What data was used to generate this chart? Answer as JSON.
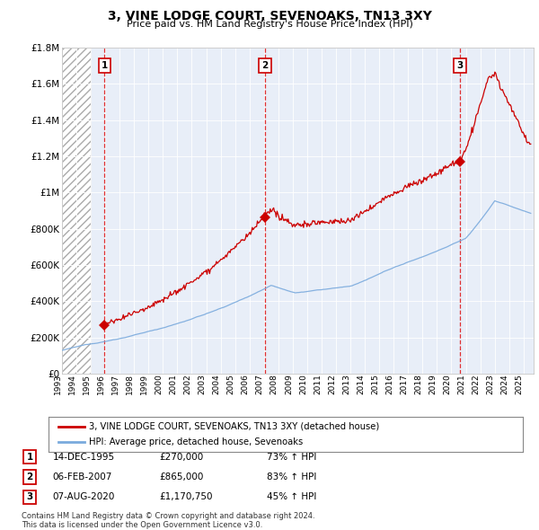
{
  "title": "3, VINE LODGE COURT, SEVENOAKS, TN13 3XY",
  "subtitle": "Price paid vs. HM Land Registry's House Price Index (HPI)",
  "ylim": [
    0,
    1800000
  ],
  "yticks": [
    0,
    200000,
    400000,
    600000,
    800000,
    1000000,
    1200000,
    1400000,
    1600000,
    1800000
  ],
  "ytick_labels": [
    "£0",
    "£200K",
    "£400K",
    "£600K",
    "£800K",
    "£1M",
    "£1.2M",
    "£1.4M",
    "£1.6M",
    "£1.8M"
  ],
  "xtick_years": [
    1993,
    1994,
    1995,
    1996,
    1997,
    1998,
    1999,
    2000,
    2001,
    2002,
    2003,
    2004,
    2005,
    2006,
    2007,
    2008,
    2009,
    2010,
    2011,
    2012,
    2013,
    2014,
    2015,
    2016,
    2017,
    2018,
    2019,
    2020,
    2021,
    2022,
    2023,
    2024,
    2025
  ],
  "sale_dates_year": [
    1995.95,
    2007.09,
    2020.59
  ],
  "sale_prices": [
    270000,
    865000,
    1170750
  ],
  "sale_labels": [
    "1",
    "2",
    "3"
  ],
  "red_line_color": "#cc0000",
  "blue_line_color": "#7aaadd",
  "background_color": "#ffffff",
  "plot_bg_color": "#e8eef8",
  "grid_color": "#ffffff",
  "vline_color": "#dd0000",
  "legend_line1": "3, VINE LODGE COURT, SEVENOAKS, TN13 3XY (detached house)",
  "legend_line2": "HPI: Average price, detached house, Sevenoaks",
  "table_data": [
    [
      "1",
      "14-DEC-1995",
      "£270,000",
      "73% ↑ HPI"
    ],
    [
      "2",
      "06-FEB-2007",
      "£865,000",
      "83% ↑ HPI"
    ],
    [
      "3",
      "07-AUG-2020",
      "£1,170,750",
      "45% ↑ HPI"
    ]
  ],
  "footnote": "Contains HM Land Registry data © Crown copyright and database right 2024.\nThis data is licensed under the Open Government Licence v3.0."
}
